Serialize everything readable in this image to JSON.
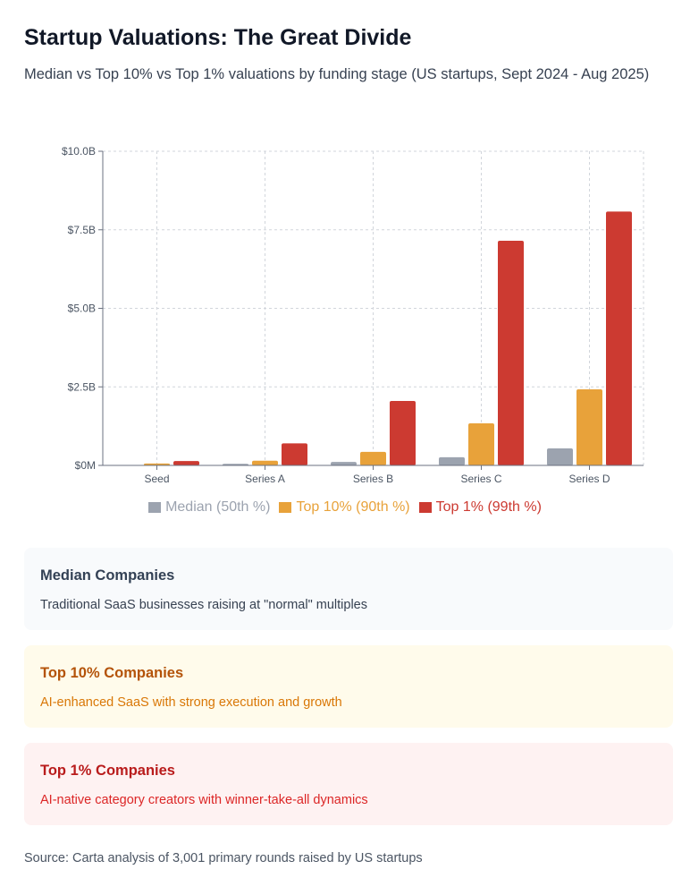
{
  "title": "Startup Valuations: The Great Divide",
  "subtitle": "Median vs Top 10% vs Top 1% valuations by funding stage (US startups, Sept 2024 - Aug 2025)",
  "chart_data": {
    "type": "bar",
    "categories": [
      "Seed",
      "Series A",
      "Series B",
      "Series C",
      "Series D"
    ],
    "series": [
      {
        "name": "Median (50th %)",
        "color": "#9ca3af",
        "values": [
          0.016,
          0.05,
          0.11,
          0.26,
          0.54
        ]
      },
      {
        "name": "Top 10% (90th %)",
        "color": "#e8a23a",
        "values": [
          0.06,
          0.15,
          0.43,
          1.34,
          2.42
        ]
      },
      {
        "name": "Top 1% (99th %)",
        "color": "#cc3a31",
        "values": [
          0.14,
          0.7,
          2.05,
          7.15,
          8.08
        ]
      }
    ],
    "ylim": [
      0,
      10
    ],
    "yticks": [
      0,
      2.5,
      5,
      7.5,
      10
    ],
    "ytick_labels": [
      "$0M",
      "$2.5B",
      "$5.0B",
      "$7.5B",
      "$10.0B"
    ],
    "grid": true,
    "legend_position": "bottom"
  },
  "cards": [
    {
      "title": "Median Companies",
      "text": "Traditional SaaS businesses raising at \"normal\" multiples",
      "bg": "#f8fafc",
      "title_color": "#334155",
      "text_color": "#374151"
    },
    {
      "title": "Top 10% Companies",
      "text": "AI-enhanced SaaS with strong execution and growth",
      "bg": "#fffbeb",
      "title_color": "#b45309",
      "text_color": "#d97706"
    },
    {
      "title": "Top 1% Companies",
      "text": "AI-native category creators with winner-take-all dynamics",
      "bg": "#fef2f2",
      "title_color": "#b91c1c",
      "text_color": "#dc2626"
    }
  ],
  "source": "Source: Carta analysis of 3,001 primary rounds raised by US startups"
}
